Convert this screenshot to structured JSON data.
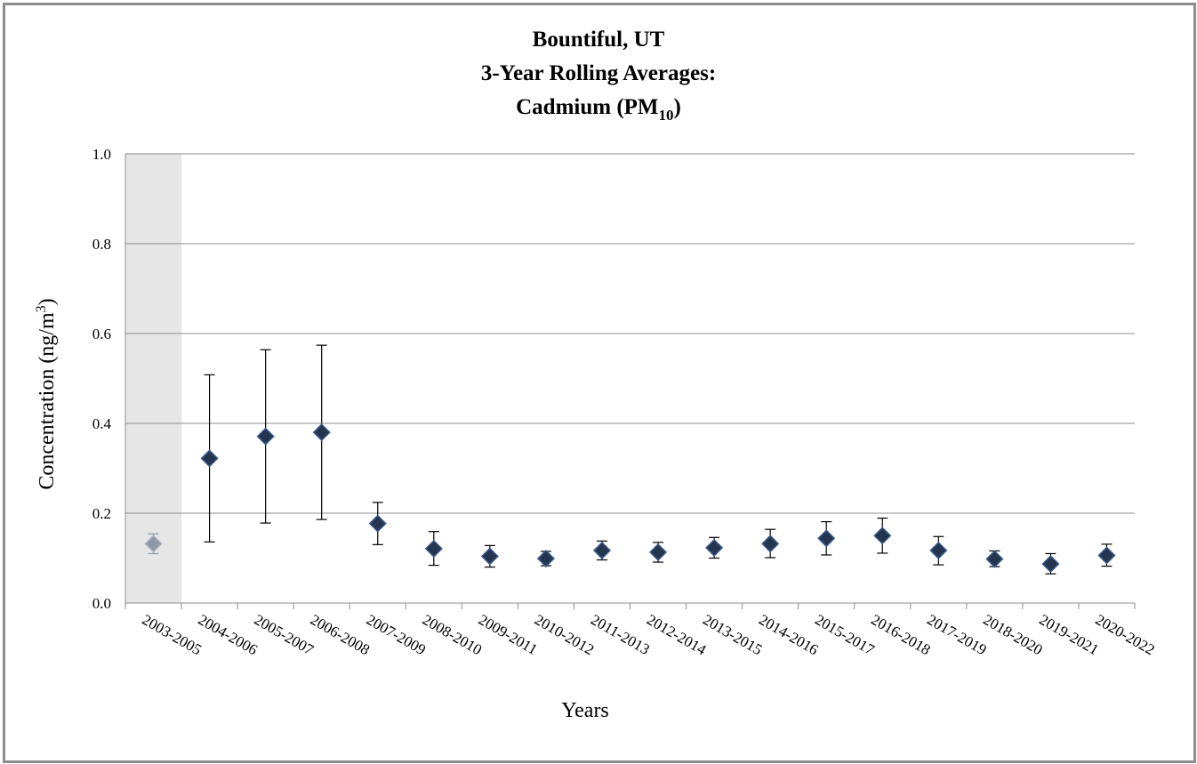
{
  "chart_data": {
    "type": "scatter",
    "title_lines": [
      "Bountiful, UT",
      "3-Year Rolling Averages:",
      "Cadmium (PM",
      "10",
      ")"
    ],
    "xlabel": "Years",
    "ylabel_main": "Concentration (ng/m",
    "ylabel_sup": "3",
    "ylabel_close": ")",
    "ylim": [
      0,
      1.0
    ],
    "yticks": [
      "0.0",
      "0.2",
      "0.4",
      "0.6",
      "0.8",
      "1.0"
    ],
    "grid": true,
    "categories": [
      "2003-2005",
      "2004-2006",
      "2005-2007",
      "2006-2008",
      "2007-2009",
      "2008-2010",
      "2009-2011",
      "2010-2012",
      "2011-2013",
      "2012-2014",
      "2013-2015",
      "2014-2016",
      "2015-2017",
      "2016-2018",
      "2017-2019",
      "2018-2020",
      "2019-2021",
      "2020-2022"
    ],
    "values": [
      0.132,
      0.322,
      0.371,
      0.38,
      0.177,
      0.121,
      0.104,
      0.099,
      0.117,
      0.113,
      0.123,
      0.132,
      0.144,
      0.15,
      0.117,
      0.098,
      0.087,
      0.106
    ],
    "error_low": [
      0.11,
      0.136,
      0.178,
      0.186,
      0.13,
      0.084,
      0.08,
      0.083,
      0.096,
      0.091,
      0.1,
      0.101,
      0.107,
      0.111,
      0.085,
      0.081,
      0.065,
      0.082
    ],
    "error_high": [
      0.154,
      0.508,
      0.564,
      0.574,
      0.224,
      0.159,
      0.128,
      0.115,
      0.138,
      0.135,
      0.146,
      0.164,
      0.181,
      0.189,
      0.148,
      0.116,
      0.11,
      0.131
    ],
    "highlighted_categories": [
      "2003-2005"
    ],
    "colors": {
      "marker": "#243550",
      "marker_stroke": "#3b5a8a",
      "marker_highlight": "#8d97a8",
      "highlight_band": "#e6e6e6",
      "grid": "#8c8c8c",
      "error_bar": "#000000"
    }
  }
}
